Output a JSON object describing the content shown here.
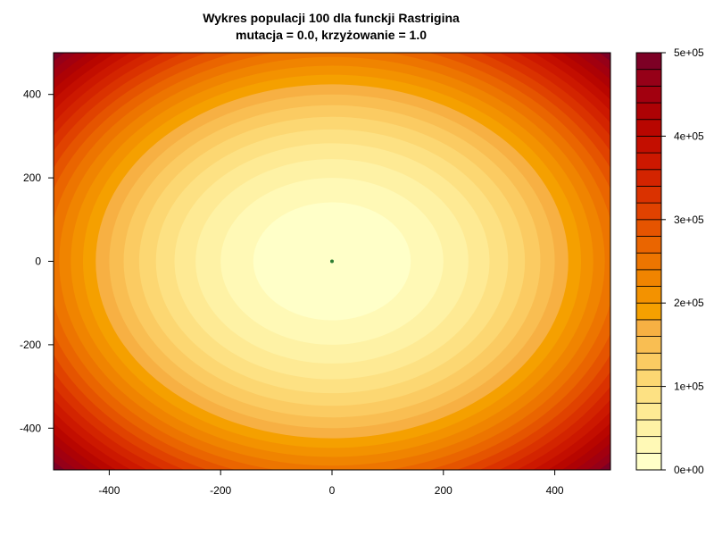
{
  "chart_data": {
    "type": "heatmap",
    "title_line1": "Wykres populacji 100 dla funckji Rastrigina",
    "title_line2": "mutacja = 0.0, krzyżowanie = 1.0",
    "xlim": [
      -500,
      500
    ],
    "ylim": [
      -500,
      500
    ],
    "x_ticks": [
      "-400",
      "-200",
      "0",
      "200",
      "400"
    ],
    "x_tick_values": [
      -400,
      -200,
      0,
      200,
      400
    ],
    "y_ticks": [
      "-400",
      "-200",
      "0",
      "200",
      "400"
    ],
    "y_tick_values": [
      -400,
      -200,
      0,
      200,
      400
    ],
    "color_scale": {
      "min": 0,
      "max": 500000,
      "levels": 25,
      "tick_labels": [
        "0e+00",
        "1e+05",
        "2e+05",
        "3e+05",
        "4e+05",
        "5e+05"
      ],
      "tick_values": [
        0,
        100000,
        200000,
        300000,
        400000,
        500000
      ],
      "colors": [
        "#FFFFC8",
        "#FFF9B6",
        "#FEF2A5",
        "#FEEA94",
        "#FDE183",
        "#FCD772",
        "#FBCB62",
        "#F9BE52",
        "#F7B043",
        "#F5A000",
        "#F39200",
        "#F08400",
        "#ED7500",
        "#EA6500",
        "#E55400",
        "#E04200",
        "#DA3200",
        "#D32400",
        "#CC1800",
        "#C30E00",
        "#B80600",
        "#AD0205",
        "#A2000F",
        "#960018",
        "#7D0025"
      ]
    },
    "population": [
      {
        "x": 0,
        "y": 0,
        "color": "#2E7D32"
      }
    ]
  }
}
